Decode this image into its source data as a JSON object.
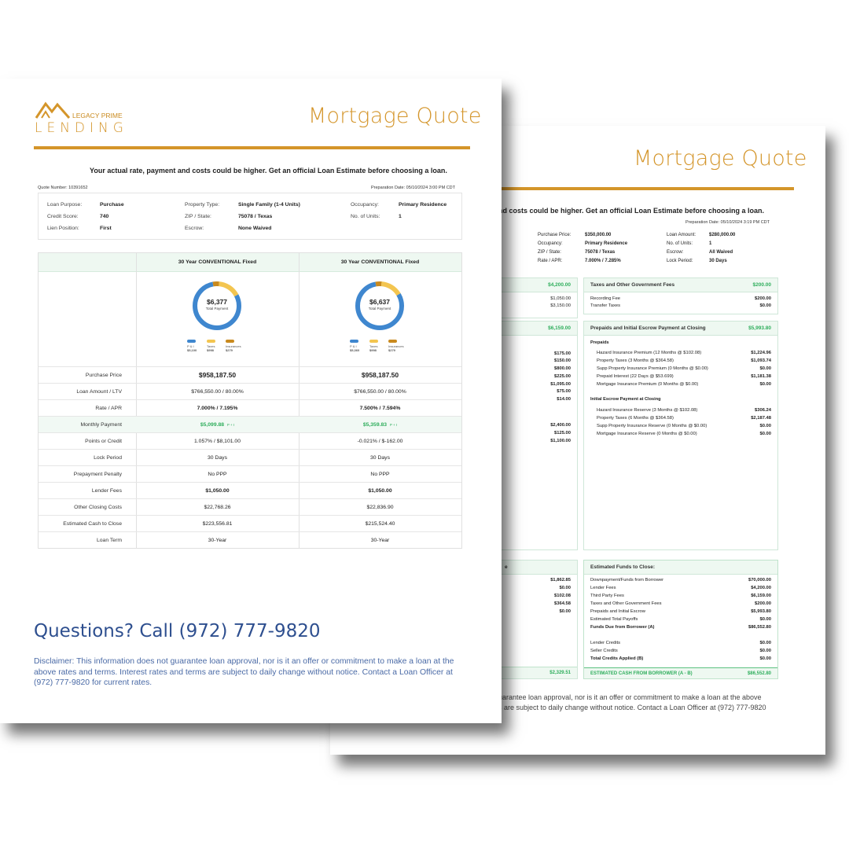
{
  "back": {
    "title": "Mortgage Quote",
    "notice": "nd costs could be higher. Get an official Loan Estimate before choosing a loan.",
    "prep_date": "Preparation Date: 05/10/2024 3:19 PM CDT",
    "info": [
      {
        "k": "Purchase Price:",
        "v": "$350,000.00"
      },
      {
        "k": "Occupancy:",
        "v": "Primary Residence"
      },
      {
        "k": "ZIP / State:",
        "v": "75078 / Texas"
      },
      {
        "k": "Rate / APR:",
        "v": "7.000% / 7.285%"
      },
      {
        "k": "Loan Amount:",
        "v": "$280,000.00"
      },
      {
        "k": "No. of Units:",
        "v": "1"
      },
      {
        "k": "Escrow:",
        "v": "All Waived"
      },
      {
        "k": "Lock Period:",
        "v": "30 Days"
      }
    ],
    "left_col": {
      "head1_amount": "$4,200.00",
      "vals1": [
        "$1,050.00",
        "$3,150.00"
      ],
      "head2_amount": "$6,159.00",
      "vals2": [
        "$175.00",
        "$150.00",
        "$800.00",
        "$225.00",
        "$1,095.00",
        "$75.00",
        "$14.00"
      ],
      "vals3": [
        "$2,400.00",
        "$125.00",
        "$1,100.00"
      ],
      "head4_tail": "e",
      "vals4": [
        "$1,862.85",
        "$0.00",
        "$102.08",
        "$364.58",
        "$0.00"
      ],
      "total": "$2,329.51"
    },
    "taxes": {
      "title": "Taxes and Other Government Fees",
      "amount": "$200.00",
      "rows": [
        {
          "l": "Recording Fee",
          "v": "$200.00"
        },
        {
          "l": "Transfer Taxes",
          "v": "$0.00"
        }
      ]
    },
    "prepaids": {
      "title": "Prepaids and Initial Escrow Payment at Closing",
      "amount": "$5,993.80",
      "sub1": "Prepaids",
      "rows1": [
        {
          "l": "Hazard Insurance Premium (12 Months @ $102.08)",
          "v": "$1,224.96"
        },
        {
          "l": "Property Taxes (3 Months @ $364.58)",
          "v": "$1,093.74"
        },
        {
          "l": "Supp Property Insurance Premium (0 Months @ $0.00)",
          "v": "$0.00"
        },
        {
          "l": "Prepaid Interest (22 Days @ $53.699)",
          "v": "$1,181.38"
        },
        {
          "l": "Mortgage Insurance Premium (0 Months @ $0.00)",
          "v": "$0.00"
        }
      ],
      "sub2": "Initial Escrow Payment at Closing",
      "rows2": [
        {
          "l": "Hazard Insurance Reserve (3 Months @ $102.08)",
          "v": "$306.24"
        },
        {
          "l": "Property Taxes (6 Months @ $364.58)",
          "v": "$2,187.48"
        },
        {
          "l": "Supp Property Insurance Reserve (0 Months @ $0.00)",
          "v": "$0.00"
        },
        {
          "l": "Mortgage Insurance Reserve (0 Months @ $0.00)",
          "v": "$0.00"
        }
      ]
    },
    "funds": {
      "title": "Estimated Funds to Close:",
      "rows": [
        {
          "l": "Downpayment/Funds from Borrower",
          "v": "$70,000.00",
          "b": false
        },
        {
          "l": "Lender Fees",
          "v": "$4,200.00",
          "b": false
        },
        {
          "l": "Third Party Fees",
          "v": "$6,159.00",
          "b": false
        },
        {
          "l": "Taxes and Other Government Fees",
          "v": "$200.00",
          "b": false
        },
        {
          "l": "Prepaids and Initial Escrow",
          "v": "$5,993.80",
          "b": false
        },
        {
          "l": "Estimated Total Payoffs",
          "v": "$0.00",
          "b": false
        },
        {
          "l": "Funds Due from Borrower (A)",
          "v": "$86,552.80",
          "b": true
        }
      ],
      "rows2": [
        {
          "l": "Lender Credits",
          "v": "$0.00",
          "b": false
        },
        {
          "l": "Seller Credits",
          "v": "$0.00",
          "b": false
        },
        {
          "l": "Total Credits Applied (B)",
          "v": "$0.00",
          "b": true
        }
      ],
      "total_label": "ESTIMATED CASH FROM BORROWER (A - B)",
      "total_value": "$86,552.80"
    },
    "disclaimer_line1": "uarantee loan approval, nor is it an offer or commitment to make a loan at the above",
    "disclaimer_line2": "s are subject to daily change without notice. Contact a Loan Officer at (972) 777-9820"
  },
  "front": {
    "logo_top": "LEGACY PRIME",
    "logo_bottom": "LENDING",
    "title": "Mortgage Quote",
    "notice": "Your actual rate, payment and costs could be higher. Get an official Loan Estimate before choosing a loan.",
    "quote_number": "Quote Number: 10391652",
    "prep_date": "Preparation Date: 05/10/2024 3:00 PM CDT",
    "info": {
      "loan_purpose_k": "Loan Purpose:",
      "loan_purpose_v": "Purchase",
      "credit_k": "Credit Score:",
      "credit_v": "740",
      "lien_k": "Lien Position:",
      "lien_v": "First",
      "ptype_k": "Property Type:",
      "ptype_v": "Single Family (1-4 Units)",
      "zip_k": "ZIP / State:",
      "zip_v": "75078 / Texas",
      "escrow_k": "Escrow:",
      "escrow_v": "None Waived",
      "occ_k": "Occupancy:",
      "occ_v": "Primary Residence",
      "units_k": "No. of Units:",
      "units_v": "1"
    },
    "columns": [
      {
        "name": "30 Year CONVENTIONAL Fixed",
        "total": "$6,377",
        "total_label": "Total Payment",
        "legend": [
          {
            "n": "P & I",
            "v": "$5,100"
          },
          {
            "n": "Taxes",
            "v": "$998"
          },
          {
            "n": "Insurances",
            "v": "$279"
          }
        ],
        "breakdown": [
          5100,
          998,
          279
        ],
        "purchase_price": "$958,187.50",
        "loan_amount": "$766,550.00 / 80.00%",
        "rate_apr": "7.000% / 7.195%",
        "monthly": "$5,099.88",
        "monthly_tag": "P + I",
        "points": "1.057% / $8,101.00",
        "lock": "30 Days",
        "ppp": "No PPP",
        "lender_fees": "$1,050.00",
        "other_costs": "$22,768.26",
        "cash_close": "$223,556.81",
        "term": "30-Year"
      },
      {
        "name": "30 Year CONVENTIONAL Fixed",
        "total": "$6,637",
        "total_label": "Total Payment",
        "legend": [
          {
            "n": "P & I",
            "v": "$5,360"
          },
          {
            "n": "Taxes",
            "v": "$998"
          },
          {
            "n": "Insurances",
            "v": "$279"
          }
        ],
        "breakdown": [
          5360,
          998,
          279
        ],
        "purchase_price": "$958,187.50",
        "loan_amount": "$766,550.00 / 80.00%",
        "rate_apr": "7.500% / 7.594%",
        "monthly": "$5,359.83",
        "monthly_tag": "P + I",
        "points": "-0.021% / $-162.00",
        "lock": "30 Days",
        "ppp": "No PPP",
        "lender_fees": "$1,050.00",
        "other_costs": "$22,836.90",
        "cash_close": "$215,524.40",
        "term": "30-Year"
      }
    ],
    "row_labels": {
      "purchase_price": "Purchase Price",
      "loan_amount": "Loan Amount / LTV",
      "rate_apr": "Rate / APR",
      "monthly": "Monthly Payment",
      "points": "Points or Credit",
      "lock": "Lock Period",
      "ppp": "Prepayment Penalty",
      "lender_fees": "Lender Fees",
      "other_costs": "Other Closing Costs",
      "cash_close": "Estimated Cash to Close",
      "term": "Loan Term"
    },
    "questions": "Questions? Call (972) 777-9820",
    "disclaimer": "Disclaimer: This information does not guarantee loan approval, nor is it an offer or commitment to make a loan at the above rates and terms. Interest rates and terms are subject to daily change without notice. Contact a Loan Officer at (972) 777-9820 for current rates."
  },
  "colors": {
    "gold": "#d4952a",
    "green": "#2fae5c",
    "blue": "#3f87cf",
    "yellow": "#f3c550",
    "brown": "#c98a1e",
    "navy": "#2e4f8f"
  }
}
